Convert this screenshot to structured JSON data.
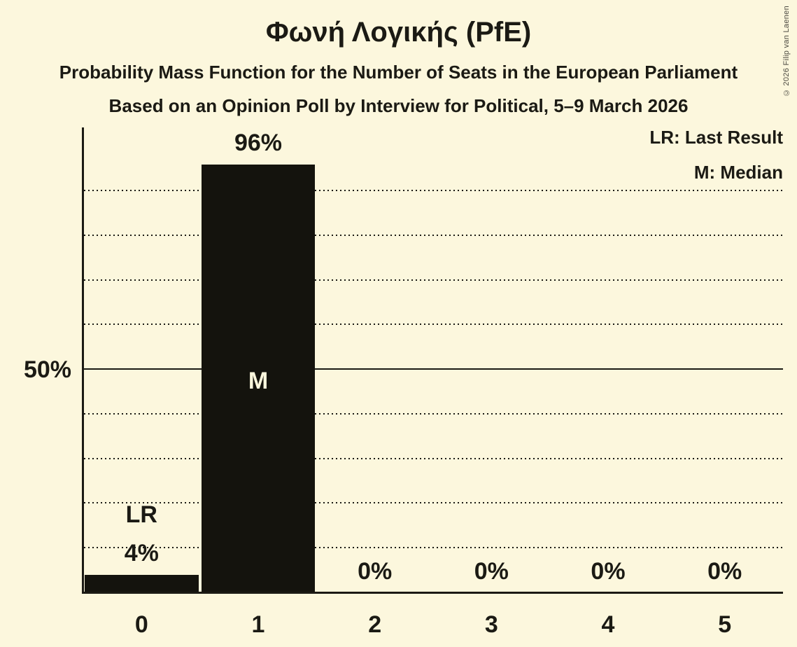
{
  "title": "Φωνή Λογικής (PfE)",
  "subtitle": "Probability Mass Function for the Number of Seats in the European Parliament",
  "poll_line": "Based on an Opinion Poll by Interview for Political, 5–9 March 2026",
  "copyright": "© 2026 Filip van Laenen",
  "legend": {
    "last_result": "LR: Last Result",
    "median": "M: Median"
  },
  "colors": {
    "background": "#fcf7dd",
    "bar": "#14130d",
    "text": "#1b1a14",
    "median_text": "#fcf7dd",
    "copyright_text": "#4d4b42"
  },
  "chart_data": {
    "type": "bar",
    "title": "Φωνή Λογικής (PfE)",
    "subtitle": "Probability Mass Function for the Number of Seats in the European Parliament",
    "source_line": "Based on an Opinion Poll by Interview for Political, 5–9 March 2026",
    "categories": [
      "0",
      "1",
      "2",
      "3",
      "4",
      "5"
    ],
    "values": [
      4,
      96,
      0,
      0,
      0,
      0
    ],
    "value_labels": [
      "4%",
      "96%",
      "0%",
      "0%",
      "0%",
      "0%"
    ],
    "last_result_category": "0",
    "last_result_marker": "LR",
    "median_category": "1",
    "median_marker": "M",
    "y_tick_label": "50%",
    "y_tick_value": 50,
    "ylim": [
      0,
      104
    ],
    "gridlines_percent": [
      10,
      20,
      30,
      40,
      50,
      60,
      70,
      80,
      90
    ],
    "solid_gridline_percent": 50,
    "grid": "dotted horizontal",
    "legend_position": "top-right",
    "legend_entries": [
      "LR: Last Result",
      "M: Median"
    ]
  }
}
